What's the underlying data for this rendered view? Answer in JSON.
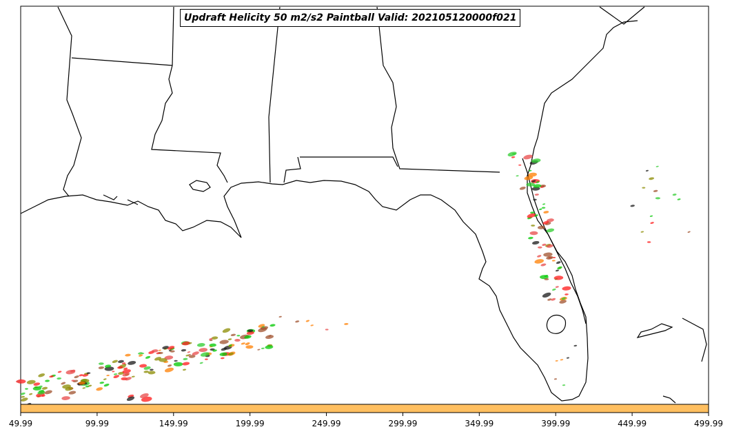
{
  "title": "Updraft Helicity 50 m2/s2 Paintball Valid: 202105120000f021",
  "map": {
    "region": "Southeastern United States / Gulf of Mexico",
    "land_color": "#ffffff",
    "water_color": "#ffffff",
    "boundary_color": "#000000",
    "colorbar_color": "#ffbf60"
  },
  "x_axis": {
    "ticks": [
      "49.99",
      "99.99",
      "149.99",
      "199.99",
      "249.99",
      "299.99",
      "349.99",
      "399.99",
      "449.99",
      "499.99"
    ]
  },
  "member_colors": [
    "#ff1a1a",
    "#00c800",
    "#ff7f00",
    "#8b8b00",
    "#1a1a1a",
    "#e84a4a",
    "#2ecc2e",
    "#a0522d"
  ]
}
